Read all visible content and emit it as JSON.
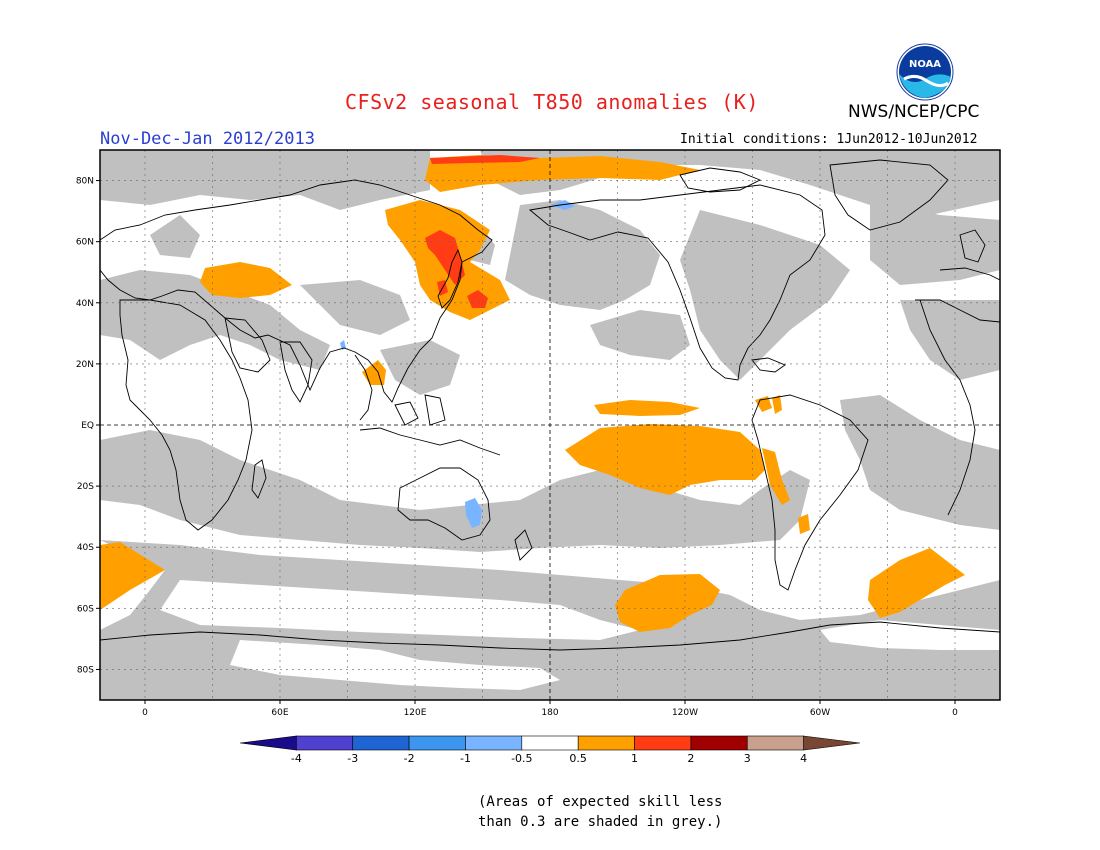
{
  "title": "CFSv2 seasonal T850 anomalies (K)",
  "season_label": "Nov-Dec-Jan 2012/2013",
  "initial_conditions": "Initial conditions: 1Jun2012-10Jun2012",
  "agency": "NWS/NCEP/CPC",
  "logo_text": "NOAA",
  "map": {
    "lat_labels": [
      "80N",
      "60N",
      "40N",
      "20N",
      "EQ",
      "20S",
      "40S",
      "60S",
      "80S"
    ],
    "lon_labels": [
      "0",
      "60E",
      "120E",
      "180",
      "120W",
      "60W",
      "0"
    ],
    "lon_range": [
      -20,
      380
    ],
    "lat_range": [
      -90,
      90
    ],
    "grid_spacing_deg": 30,
    "colors": {
      "skill_grey": "#c0c0c0",
      "anom_0_5_1": "#ffa000",
      "anom_1_2": "#ff3c14",
      "anom_2_3": "#a00000",
      "anom_neg_1_0_5": "#78b4ff",
      "coast": "#000000"
    }
  },
  "colorbar": {
    "tick_labels": [
      "-4",
      "-3",
      "-2",
      "-1",
      "-0.5",
      "0.5",
      "1",
      "2",
      "3",
      "4"
    ],
    "bounds": [
      -4,
      -3,
      -2,
      -1,
      -0.5,
      0.5,
      1,
      2,
      3,
      4
    ],
    "colors": [
      "#1a0a8c",
      "#5040d0",
      "#1e64d2",
      "#3c96f0",
      "#78b4ff",
      "#ffffff",
      "#ffa000",
      "#ff3c14",
      "#a00000",
      "#c8a08c",
      "#784632"
    ]
  },
  "skill_note": {
    "line1": "(Areas of expected skill less",
    "line2": "than 0.3 are shaded in grey.)"
  }
}
